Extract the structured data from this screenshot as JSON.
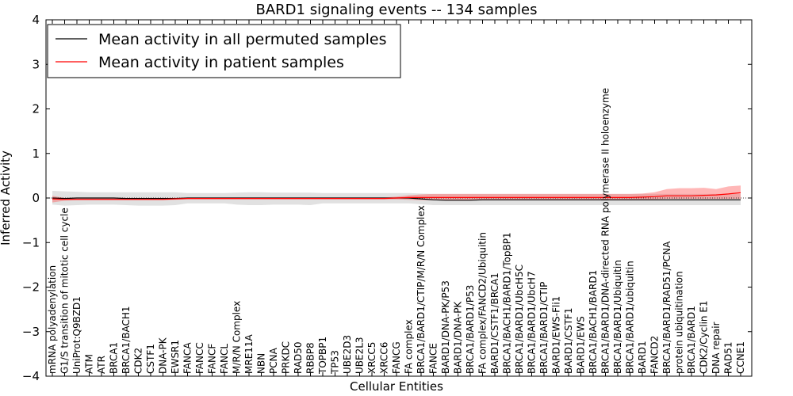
{
  "chart_data": {
    "type": "line",
    "title": "BARD1 signaling events -- 134 samples",
    "xlabel": "Cellular Entities",
    "ylabel": "Inferred Activity",
    "ylim": [
      -4,
      4
    ],
    "yticks": [
      -4,
      -3,
      -2,
      -1,
      0,
      1,
      2,
      3,
      4
    ],
    "grid": false,
    "legend_position": "top-left",
    "categories": [
      "mRNA polyadenylation",
      "G1/S transition of mitotic cell cycle",
      "UniProt:Q9BZD1",
      "ATM",
      "ATR",
      "BRCA1",
      "BRCA1/BACH1",
      "CDK2",
      "CSTF1",
      "DNA-PK",
      "EWSR1",
      "FANCA",
      "FANCC",
      "FANCF",
      "FANCL",
      "M/R/N Complex",
      "MRE11A",
      "NBN",
      "PCNA",
      "PRKDC",
      "RAD50",
      "RBBP8",
      "TOPBP1",
      "TP53",
      "UBE2D3",
      "UBE2L3",
      "XRCC5",
      "XRCC6",
      "FANCG",
      "FA complex",
      "BRCA1/BARD1/CTIP/M/R/N Complex",
      "FANCE",
      "BARD1/DNA-PK/P53",
      "BARD1/DNA-PK",
      "BRCA1/BARD1/P53",
      "FA complex/FANCD2/Ubiquitin",
      "BARD1/CSTF1/BRCA1",
      "BRCA1/BACH1/BARD1/TopBP1",
      "BRCA1/BARD1/UbcH5C",
      "BRCA1/BARD1/UbcH7",
      "BRCA1/BARD1/CTIP",
      "BARD1/EWS-Fli1",
      "BARD1/CSTF1",
      "BARD1/EWS",
      "BRCA1/BACH1/BARD1",
      "BRCA1/BARD1/DNA-directed RNA polymerase II holoenzyme",
      "BRCA1/BARD1/Ubiquitin",
      "BRCA1/BARD1/ubiquitin",
      "BARD1",
      "FANCD2",
      "BRCA1/BARD1/RAD51/PCNA",
      "protein ubiquitination",
      "BRCA1/BARD1",
      "CDK2/Cyclin E1",
      "DNA repair",
      "RAD51",
      "CCNE1"
    ],
    "series": [
      {
        "name": "Mean activity in all permuted samples",
        "color": "#000000",
        "values": [
          0,
          -0.01,
          0,
          0,
          0,
          0,
          -0.01,
          -0.01,
          -0.01,
          -0.01,
          -0.01,
          0,
          0,
          0,
          0,
          0,
          0,
          0,
          0,
          0,
          0,
          0,
          0,
          0,
          0,
          0,
          0,
          0,
          0,
          0,
          -0.02,
          -0.04,
          -0.05,
          -0.05,
          -0.05,
          -0.04,
          -0.04,
          -0.04,
          -0.04,
          -0.04,
          -0.04,
          -0.04,
          -0.04,
          -0.04,
          -0.04,
          -0.04,
          -0.04,
          -0.04,
          -0.04,
          -0.04,
          -0.04,
          -0.04,
          -0.04,
          -0.04,
          -0.04,
          -0.04,
          -0.04
        ],
        "band_low": [
          -0.15,
          -0.17,
          -0.16,
          -0.15,
          -0.15,
          -0.15,
          -0.16,
          -0.17,
          -0.17,
          -0.17,
          -0.16,
          -0.12,
          -0.12,
          -0.12,
          -0.12,
          -0.15,
          -0.16,
          -0.16,
          -0.15,
          -0.15,
          -0.15,
          -0.16,
          -0.12,
          -0.12,
          -0.12,
          -0.12,
          -0.12,
          -0.12,
          -0.12,
          -0.12,
          -0.14,
          -0.16,
          -0.16,
          -0.16,
          -0.16,
          -0.16,
          -0.16,
          -0.16,
          -0.16,
          -0.16,
          -0.16,
          -0.16,
          -0.16,
          -0.16,
          -0.16,
          -0.16,
          -0.16,
          -0.16,
          -0.16,
          -0.16,
          -0.16,
          -0.16,
          -0.16,
          -0.16,
          -0.16,
          -0.16,
          -0.16
        ],
        "band_high": [
          0.16,
          0.15,
          0.14,
          0.13,
          0.13,
          0.13,
          0.13,
          0.13,
          0.13,
          0.13,
          0.13,
          0.11,
          0.11,
          0.11,
          0.11,
          0.12,
          0.13,
          0.13,
          0.12,
          0.12,
          0.12,
          0.12,
          0.11,
          0.11,
          0.11,
          0.11,
          0.11,
          0.11,
          0.11,
          0.11,
          0.1,
          0.09,
          0.09,
          0.09,
          0.09,
          0.09,
          0.09,
          0.09,
          0.09,
          0.09,
          0.09,
          0.09,
          0.09,
          0.09,
          0.09,
          0.09,
          0.09,
          0.09,
          0.09,
          0.09,
          0.09,
          0.09,
          0.09,
          0.09,
          0.09,
          0.09,
          0.09
        ]
      },
      {
        "name": "Mean activity in patient samples",
        "color": "#ff0000",
        "values": [
          -0.02,
          -0.03,
          -0.03,
          -0.03,
          -0.03,
          -0.03,
          -0.03,
          -0.03,
          -0.03,
          -0.03,
          -0.02,
          -0.01,
          -0.01,
          -0.01,
          -0.01,
          -0.01,
          -0.01,
          -0.01,
          -0.01,
          -0.01,
          -0.01,
          -0.01,
          -0.01,
          -0.01,
          -0.01,
          -0.01,
          -0.01,
          -0.01,
          0,
          0.01,
          0.01,
          0.01,
          0.01,
          0.01,
          0.01,
          0.01,
          0.01,
          0.01,
          0.01,
          0.01,
          0.01,
          0.01,
          0.01,
          0.01,
          0.01,
          0.01,
          0.01,
          0.01,
          0.02,
          0.03,
          0.05,
          0.05,
          0.05,
          0.06,
          0.07,
          0.09,
          0.12
        ],
        "band_low": [
          -0.1,
          -0.06,
          -0.05,
          -0.05,
          -0.05,
          -0.05,
          -0.05,
          -0.05,
          -0.05,
          -0.05,
          -0.04,
          -0.03,
          -0.03,
          -0.03,
          -0.03,
          -0.03,
          -0.03,
          -0.03,
          -0.03,
          -0.03,
          -0.03,
          -0.03,
          -0.03,
          -0.03,
          -0.03,
          -0.03,
          -0.03,
          -0.03,
          -0.03,
          -0.04,
          -0.05,
          -0.05,
          -0.05,
          -0.05,
          -0.05,
          -0.05,
          -0.05,
          -0.05,
          -0.05,
          -0.05,
          -0.05,
          -0.05,
          -0.05,
          -0.05,
          -0.05,
          -0.05,
          -0.05,
          -0.05,
          -0.04,
          -0.03,
          -0.02,
          -0.02,
          -0.02,
          -0.02,
          -0.02,
          -0.02,
          -0.02
        ],
        "band_high": [
          0.05,
          0,
          0,
          0,
          0,
          0,
          0,
          0,
          0,
          0,
          0,
          0.01,
          0.01,
          0.01,
          0.01,
          0.01,
          0.01,
          0.01,
          0.01,
          0.01,
          0.01,
          0.01,
          0.01,
          0.01,
          0.01,
          0.01,
          0.01,
          0.01,
          0.03,
          0.06,
          0.08,
          0.09,
          0.09,
          0.09,
          0.09,
          0.09,
          0.09,
          0.09,
          0.09,
          0.09,
          0.09,
          0.09,
          0.09,
          0.09,
          0.09,
          0.09,
          0.09,
          0.09,
          0.1,
          0.13,
          0.2,
          0.22,
          0.22,
          0.23,
          0.2,
          0.26,
          0.28
        ]
      }
    ]
  }
}
